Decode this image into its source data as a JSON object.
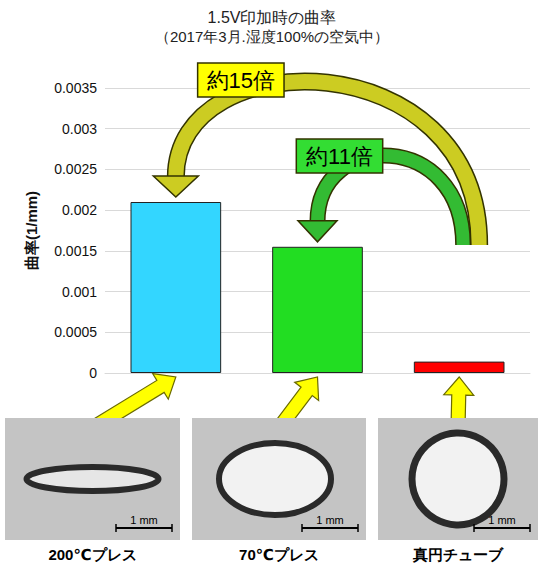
{
  "chart_data": {
    "type": "bar",
    "title": "1.5V印加時の曲率",
    "subtitle": "（2017年3月.湿度100%の空気中）",
    "y_label": "曲率(1/mm)",
    "categories": [
      "200℃プレス",
      "70℃プレス",
      "真円チューブ"
    ],
    "values": [
      0.0021,
      0.00155,
      0.00014
    ],
    "colors": [
      "#33d6ff",
      "#22dd22",
      "#ff0000"
    ],
    "ylim": [
      0,
      0.0035
    ],
    "yticks": [
      0,
      0.0005,
      0.001,
      0.0015,
      0.002,
      0.0025,
      0.003,
      0.0035
    ],
    "grid": true,
    "annotations": [
      {
        "text": "約15倍",
        "from": "真円チューブ",
        "to": "200℃プレス"
      },
      {
        "text": "約11倍",
        "from": "真円チューブ",
        "to": "70℃プレス"
      }
    ],
    "scale_bar_label": "1 mm"
  }
}
